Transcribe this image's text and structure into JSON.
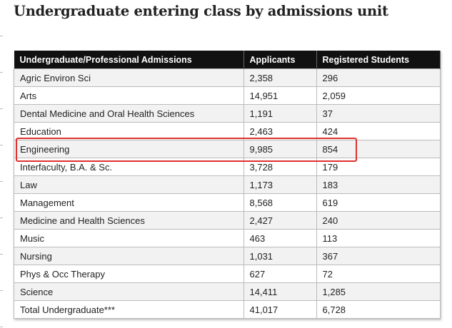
{
  "title": "Undergraduate entering class by admissions unit",
  "table": {
    "headers": [
      "Undergraduate/Professional Admissions",
      "Applicants",
      "Registered Students"
    ],
    "rows": [
      [
        "Agric Environ Sci",
        "2,358",
        "296"
      ],
      [
        "Arts",
        "14,951",
        "2,059"
      ],
      [
        "Dental Medicine and Oral Health Sciences",
        "1,191",
        "37"
      ],
      [
        "Education",
        "2,463",
        "424"
      ],
      [
        "Engineering",
        "9,985",
        "854"
      ],
      [
        "Interfaculty, B.A. & Sc.",
        "3,728",
        "179"
      ],
      [
        "Law",
        "1,173",
        "183"
      ],
      [
        "Management",
        "8,568",
        "619"
      ],
      [
        "Medicine and Health Sciences",
        "2,427",
        "240"
      ],
      [
        "Music",
        "463",
        "113"
      ],
      [
        "Nursing",
        "1,031",
        "367"
      ],
      [
        "Phys & Occ Therapy",
        "627",
        "72"
      ],
      [
        "Science",
        "14,411",
        "1,285"
      ],
      [
        "Total Undergraduate***",
        "41,017",
        "6,728"
      ]
    ]
  },
  "highlight": {
    "row": "Engineering",
    "color": "#e03030"
  }
}
